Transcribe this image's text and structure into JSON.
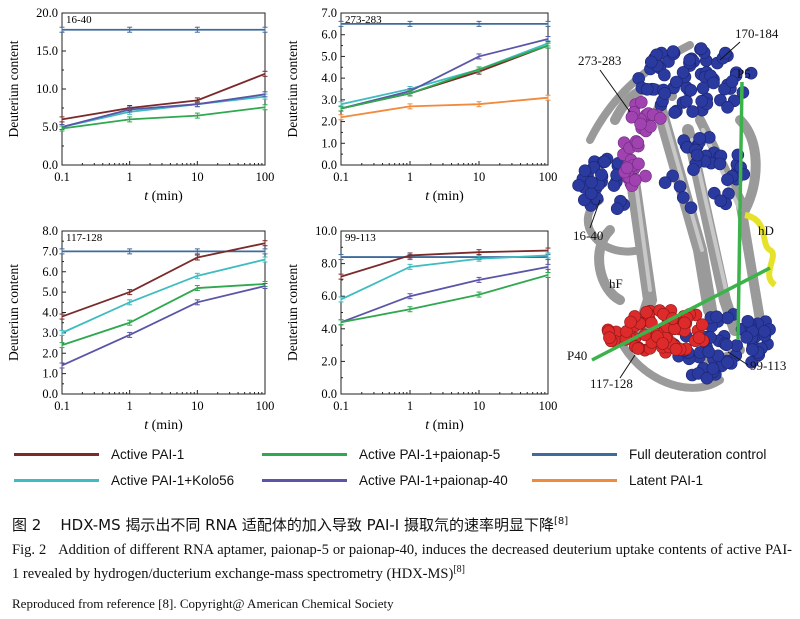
{
  "legend": [
    {
      "label": "Active PAI-1",
      "color": "#7b2a2a"
    },
    {
      "label": "Active PAI-1+paionap-5",
      "color": "#2fa84f"
    },
    {
      "label": "Full deuteration control",
      "color": "#3f6b9c"
    },
    {
      "label": "Active PAI-1+Kolo56",
      "color": "#3ebcc0"
    },
    {
      "label": "Active PAI-1+paionap-40",
      "color": "#5a55a8"
    },
    {
      "label": "Latent PAI-1",
      "color": "#f08a3c"
    }
  ],
  "chart_data": [
    {
      "type": "line",
      "title": "16-40",
      "ylabel": "Deuteriun content",
      "xlabel": "t (min)",
      "x": [
        0.1,
        1,
        10,
        100
      ],
      "xscale": "log",
      "ylim": [
        0,
        20
      ],
      "yticks": [
        "0.0",
        "5.0",
        "10.0",
        "15.0",
        "20.0"
      ],
      "xticks": [
        "0.1",
        "1",
        "10",
        "100"
      ],
      "series": [
        {
          "name": "Full deuteration control",
          "values": [
            17.8,
            17.8,
            17.8,
            17.8
          ]
        },
        {
          "name": "Active PAI-1",
          "values": [
            6.0,
            7.5,
            8.5,
            12.0
          ]
        },
        {
          "name": "Active PAI-1+Kolo56",
          "values": [
            5.0,
            7.0,
            8.0,
            9.0
          ]
        },
        {
          "name": "Active PAI-1+paionap-40",
          "values": [
            5.0,
            7.3,
            8.0,
            9.3
          ]
        },
        {
          "name": "Active PAI-1+paionap-5",
          "values": [
            4.8,
            6.0,
            6.5,
            7.6
          ]
        }
      ]
    },
    {
      "type": "line",
      "title": "273-283",
      "ylabel": "Deuteriun content",
      "xlabel": "t (min)",
      "x": [
        0.1,
        1,
        10,
        100
      ],
      "xscale": "log",
      "ylim": [
        0,
        7
      ],
      "yticks": [
        "0.0",
        "1.0",
        "2.0",
        "3.0",
        "4.0",
        "5.0",
        "6.0",
        "7.0"
      ],
      "xticks": [
        "0.1",
        "1",
        "10",
        "100"
      ],
      "series": [
        {
          "name": "Full deuteration control",
          "values": [
            6.5,
            6.5,
            6.5,
            6.5
          ]
        },
        {
          "name": "Active PAI-1",
          "values": [
            2.6,
            3.3,
            4.3,
            5.5
          ]
        },
        {
          "name": "Active PAI-1+Kolo56",
          "values": [
            2.8,
            3.5,
            4.4,
            5.6
          ]
        },
        {
          "name": "Active PAI-1+paionap-40",
          "values": [
            2.6,
            3.4,
            5.0,
            5.8
          ]
        },
        {
          "name": "Active PAI-1+paionap-5",
          "values": [
            2.6,
            3.3,
            4.4,
            5.5
          ]
        },
        {
          "name": "Latent PAI-1",
          "values": [
            2.2,
            2.7,
            2.8,
            3.1
          ]
        }
      ]
    },
    {
      "type": "line",
      "title": "117-128",
      "ylabel": "Deuteriun content",
      "xlabel": "t (min)",
      "x": [
        0.1,
        1,
        10,
        100
      ],
      "xscale": "log",
      "ylim": [
        0,
        8
      ],
      "yticks": [
        "0.0",
        "1.0",
        "2.0",
        "3.0",
        "4.0",
        "5.0",
        "6.0",
        "7.0",
        "8.0"
      ],
      "xticks": [
        "0.1",
        "1",
        "10",
        "100"
      ],
      "series": [
        {
          "name": "Full deuteration control",
          "values": [
            7.0,
            7.0,
            7.0,
            7.0
          ]
        },
        {
          "name": "Active PAI-1",
          "values": [
            3.8,
            5.0,
            6.7,
            7.4
          ]
        },
        {
          "name": "Active PAI-1+Kolo56",
          "values": [
            3.0,
            4.5,
            5.8,
            6.6
          ]
        },
        {
          "name": "Active PAI-1+paionap-5",
          "values": [
            2.4,
            3.5,
            5.2,
            5.4
          ]
        },
        {
          "name": "Active PAI-1+paionap-40",
          "values": [
            1.4,
            2.9,
            4.5,
            5.3
          ]
        }
      ]
    },
    {
      "type": "line",
      "title": "99-113",
      "ylabel": "Deuteriun content",
      "xlabel": "t (min)",
      "x": [
        0.1,
        1,
        10,
        100
      ],
      "xscale": "log",
      "ylim": [
        0,
        10
      ],
      "yticks": [
        "0.0",
        "2.0",
        "4.0",
        "6.0",
        "8.0",
        "10.0"
      ],
      "xticks": [
        "0.1",
        "1",
        "10",
        "100"
      ],
      "series": [
        {
          "name": "Full deuteration control",
          "values": [
            8.4,
            8.4,
            8.4,
            8.4
          ]
        },
        {
          "name": "Active PAI-1",
          "values": [
            7.2,
            8.5,
            8.7,
            8.8
          ]
        },
        {
          "name": "Active PAI-1+Kolo56",
          "values": [
            5.8,
            7.8,
            8.3,
            8.5
          ]
        },
        {
          "name": "Active PAI-1+paionap-40",
          "values": [
            4.4,
            6.0,
            7.0,
            7.8
          ]
        },
        {
          "name": "Active PAI-1+paionap-5",
          "values": [
            4.4,
            5.2,
            6.1,
            7.3
          ]
        }
      ]
    }
  ],
  "structure": {
    "labels": [
      "273-283",
      "170-184",
      "P5",
      "16-40",
      "hD",
      "hF",
      "P40",
      "99-113",
      "117-128"
    ]
  },
  "caption": {
    "cn_fig": "图 2",
    "cn_text": "HDX-MS 揭示出不同 RNA 适配体的加入导致 PAI-I 摄取氘的速率明显下降",
    "cn_ref": "[8]",
    "en_fig": "Fig. 2",
    "en_text": "Addition of different RNA aptamer, paionap-5 or paionap-40, induces the decreased deuterium uptake contents of active PAI-1 revealed by hydrogen/ducterium exchange-mass spectrometry (HDX-MS)",
    "en_ref": "[8]",
    "reproduced": "Reproduced from reference [8]. Copyright@ American Chemical Society"
  }
}
